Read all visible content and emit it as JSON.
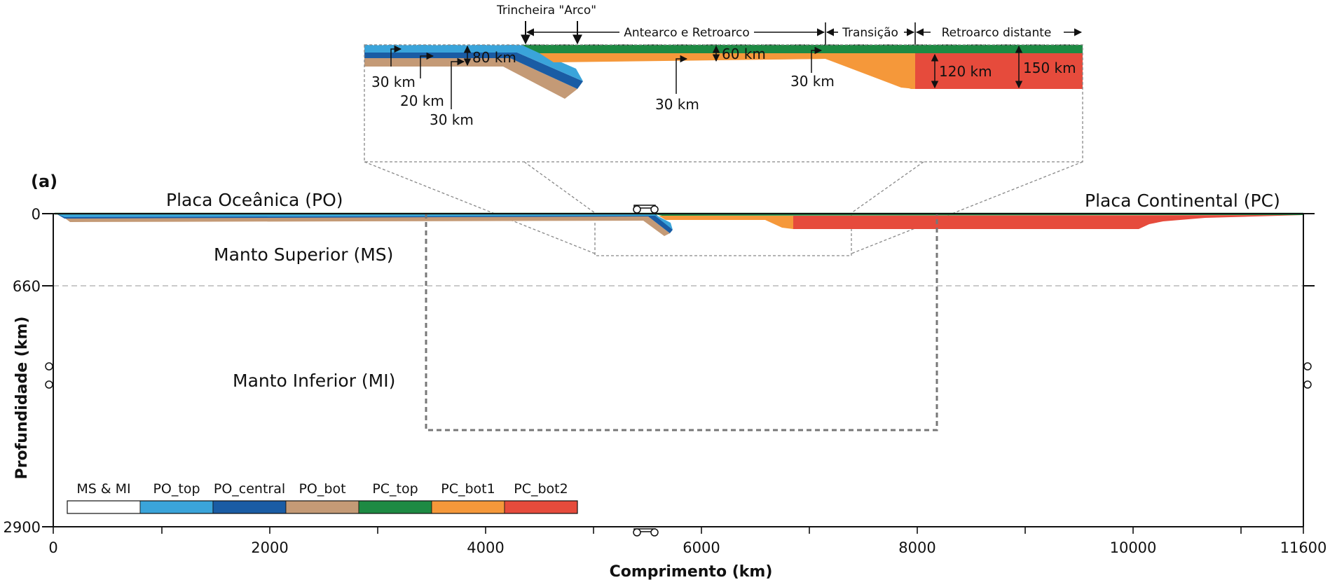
{
  "panel_label": "(a)",
  "colors": {
    "PO_top": "#3AA4DA",
    "PO_central": "#1A5CA4",
    "PO_bot": "#C49A76",
    "PC_top": "#1D8A43",
    "PC_bot1": "#F5983A",
    "PC_bot2": "#E64B3C",
    "MS_MI": "#FFFFFF"
  },
  "regions": {
    "oceanic_plate": "Placa Oceânica (PO)",
    "continental_plate": "Placa Continental (PC)",
    "upper_mantle": "Manto Superior (MS)",
    "lower_mantle": "Manto Inferior (MI)"
  },
  "zoom_inset": {
    "trench": "Trincheira \"Arco\"",
    "forearc_backarc": "Antearco e Retroarco",
    "transition": "Transição",
    "distant_backarc": "Retroarco distante",
    "thicknesses": {
      "po_top": "30 km",
      "po_central": "20 km",
      "po_bot": "30 km",
      "po_total": "80 km",
      "pc_total_forearc": "60 km",
      "pc_top_forearc": "30 km",
      "pc_top_transition": "30 km",
      "pc_transition_total": "120 km",
      "pc_distant_total": "150 km"
    }
  },
  "axes": {
    "xlabel": "Comprimento (km)",
    "ylabel": "Profundidade (km)",
    "x_ticks": [
      "0",
      "2000",
      "4000",
      "6000",
      "8000",
      "10000",
      "11600"
    ],
    "y_ticks": [
      "0",
      "660",
      "2900"
    ]
  },
  "legend": [
    {
      "label": "MS & MI",
      "color": "#FFFFFF"
    },
    {
      "label": "PO_top",
      "color": "#3AA4DA"
    },
    {
      "label": "PO_central",
      "color": "#1A5CA4"
    },
    {
      "label": "PO_bot",
      "color": "#C49A76"
    },
    {
      "label": "PC_top",
      "color": "#1D8A43"
    },
    {
      "label": "PC_bot1",
      "color": "#F5983A"
    },
    {
      "label": "PC_bot2",
      "color": "#E64B3C"
    }
  ]
}
